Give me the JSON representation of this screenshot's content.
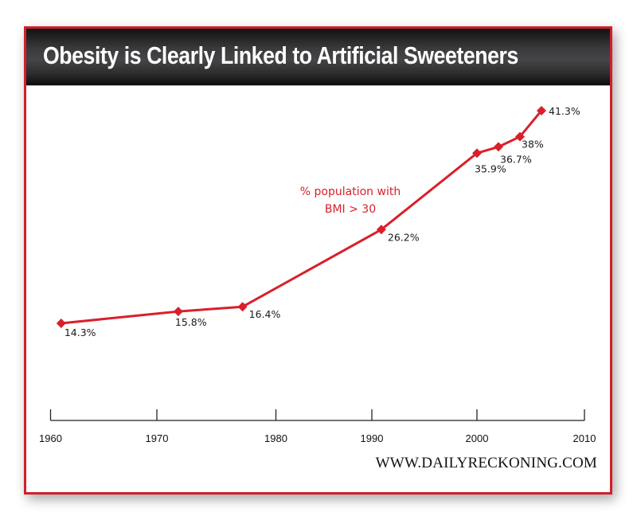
{
  "header": {
    "title": "Obesity is Clearly Linked to Artificial Sweeteners"
  },
  "footer": {
    "credit": "WWW.DAILYRECKONING.COM"
  },
  "colors": {
    "line": "#d9202a",
    "frame": "#d0202a",
    "annotation": "#d9202a",
    "label": "#1a1a1a"
  },
  "chart_data": {
    "type": "line",
    "title": "Obesity is Clearly Linked to Artificial Sweeteners",
    "xlabel": "",
    "ylabel": "",
    "x_ticks": [
      1960,
      1970,
      1980,
      1990,
      2000,
      2010
    ],
    "x_tick_labels": [
      "1960",
      "1970",
      "1980",
      "1990",
      "2000",
      "2010"
    ],
    "xlim": [
      1960,
      2010
    ],
    "ylim": [
      0,
      45
    ],
    "grid": false,
    "legend": "none",
    "series": [
      {
        "name": "% population with BMI > 30",
        "x": [
          1961,
          1971.8,
          1977.2,
          1990.9,
          2000,
          2002,
          2004,
          2006
        ],
        "values": [
          14.3,
          15.8,
          16.4,
          26.2,
          35.9,
          36.7,
          38,
          41.3
        ],
        "data_labels": [
          "14.3%",
          "15.8%",
          "16.4%",
          "26.2%",
          "35.9%",
          "36.7%",
          "38%",
          "41.3%"
        ]
      }
    ],
    "annotations": [
      {
        "text_line1": "% population with",
        "text_line2": "BMI > 30",
        "placement": "above-left of 26.2% point"
      }
    ]
  }
}
